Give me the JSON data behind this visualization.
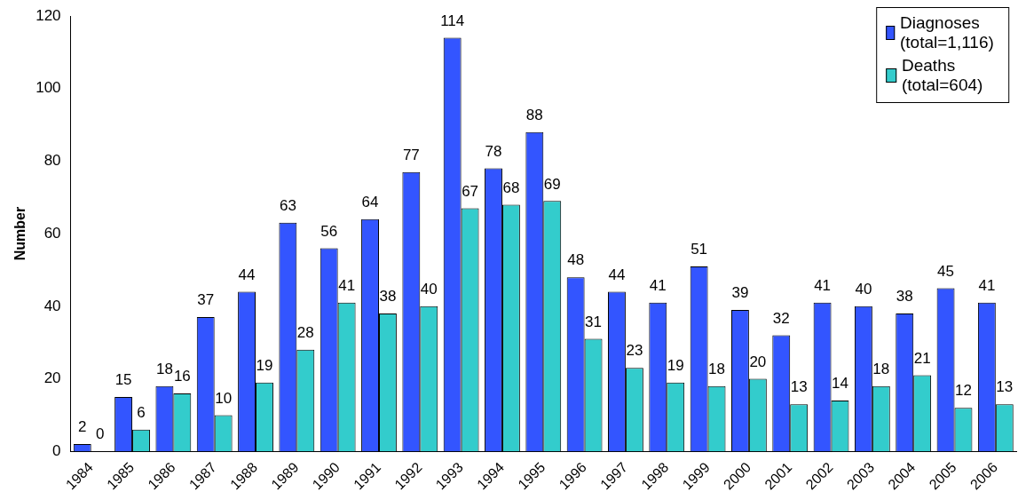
{
  "chart_data": {
    "type": "bar",
    "ylabel": "Number",
    "categories": [
      "1984",
      "1985",
      "1986",
      "1987",
      "1988",
      "1989",
      "1990",
      "1991",
      "1992",
      "1993",
      "1994",
      "1995",
      "1996",
      "1997",
      "1998",
      "1999",
      "2000",
      "2001",
      "2002",
      "2003",
      "2004",
      "2005",
      "2006"
    ],
    "series": [
      {
        "name": "Diagnoses (total=1,116)",
        "color": "#3355ff",
        "values": [
          2,
          15,
          18,
          37,
          44,
          63,
          56,
          64,
          77,
          114,
          78,
          88,
          48,
          44,
          41,
          51,
          39,
          32,
          41,
          40,
          38,
          45,
          41
        ]
      },
      {
        "name": "Deaths (total=604)",
        "color": "#33cccc",
        "values": [
          0,
          6,
          16,
          10,
          19,
          28,
          41,
          38,
          40,
          67,
          68,
          69,
          31,
          23,
          19,
          18,
          20,
          13,
          14,
          18,
          21,
          12,
          13
        ]
      }
    ],
    "ylim": [
      0,
      120
    ],
    "yticks": [
      0,
      20,
      40,
      60,
      80,
      100,
      120
    ],
    "grid": false,
    "legend": "top right",
    "data_labels": true
  }
}
